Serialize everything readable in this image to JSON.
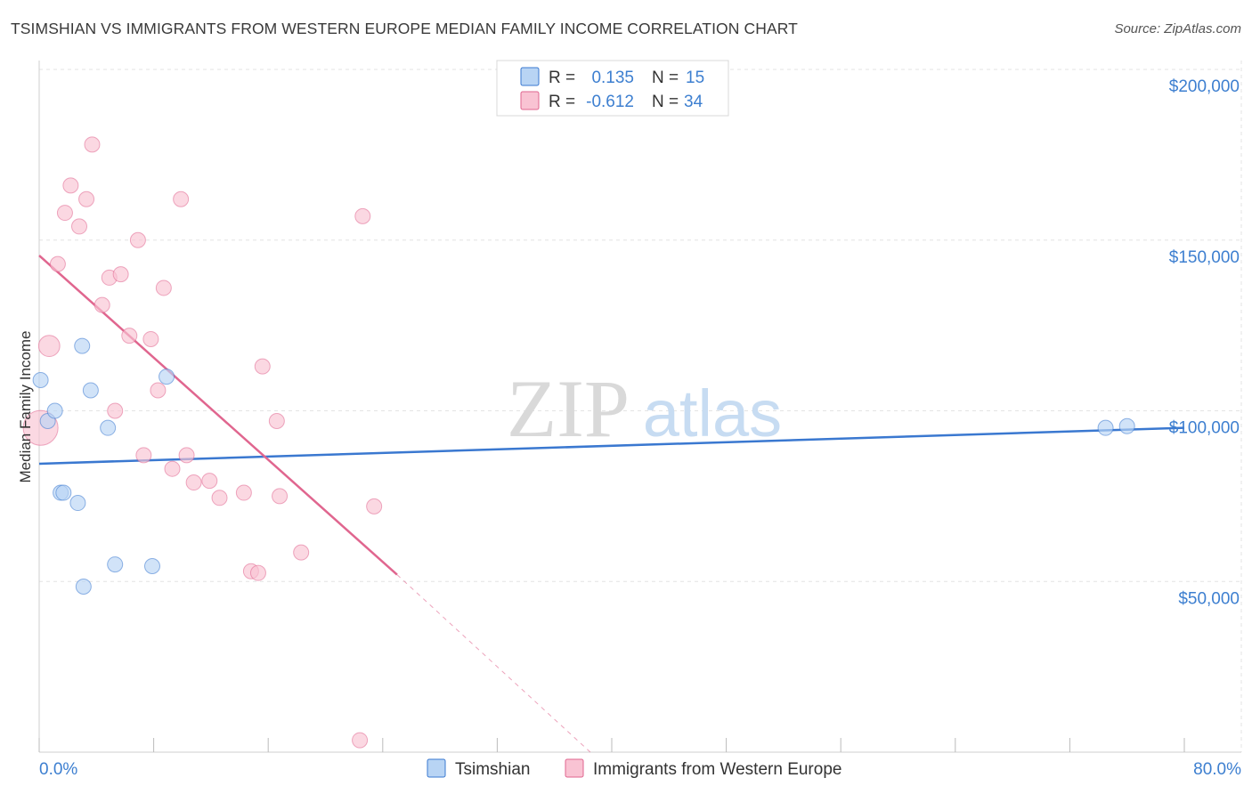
{
  "header": {
    "title": "TSIMSHIAN VS IMMIGRANTS FROM WESTERN EUROPE MEDIAN FAMILY INCOME CORRELATION CHART",
    "source": "Source: ZipAtlas.com"
  },
  "colors": {
    "blue": "#3a78d0",
    "blue_fill": "#b8d4f4",
    "pink": "#e0668f",
    "pink_fill": "#f9c3d3",
    "accent_text": "#3d7fd0"
  },
  "chart_data": {
    "type": "scatter",
    "title": "TSIMSHIAN VS IMMIGRANTS FROM WESTERN EUROPE MEDIAN FAMILY INCOME CORRELATION CHART",
    "xlabel": "",
    "ylabel": "Median Family Income",
    "xlim": [
      0,
      80
    ],
    "ylim": [
      0,
      200000
    ],
    "x_tick_labels": {
      "min": "0.0%",
      "max": "80.0%"
    },
    "y_ticks": [
      {
        "value": 50000,
        "label": "$50,000"
      },
      {
        "value": 100000,
        "label": "$100,000"
      },
      {
        "value": 150000,
        "label": "$150,000"
      },
      {
        "value": 200000,
        "label": "$200,000"
      }
    ],
    "watermark": {
      "zip": "ZIP",
      "atlas": "atlas"
    },
    "legend_stats": [
      {
        "r_label": "R =",
        "r_value": "0.135",
        "n_label": "N =",
        "n_value": "15"
      },
      {
        "r_label": "R =",
        "r_value": "-0.612",
        "n_label": "N =",
        "n_value": "34"
      }
    ],
    "series": [
      {
        "name": "Tsimshian",
        "color": "#3a78d0",
        "fill": "#b8d4f4",
        "points": [
          [
            0.1,
            109000
          ],
          [
            0.6,
            97000
          ],
          [
            1.1,
            100000
          ],
          [
            1.5,
            76000
          ],
          [
            1.7,
            76000
          ],
          [
            2.7,
            73000
          ],
          [
            3.1,
            48500
          ],
          [
            3.0,
            119000
          ],
          [
            3.6,
            106000
          ],
          [
            4.8,
            95000
          ],
          [
            5.3,
            55000
          ],
          [
            7.9,
            54500
          ],
          [
            8.9,
            110000
          ],
          [
            74.5,
            95000
          ],
          [
            76.0,
            95500
          ]
        ],
        "sizes": [
          1,
          1,
          1,
          1,
          1,
          1,
          1,
          1,
          1,
          1,
          1,
          1,
          1,
          1,
          1
        ],
        "trendline": {
          "x": [
            0,
            80
          ],
          "y": [
            84500,
            95000
          ]
        }
      },
      {
        "name": "Immigrants from Western Europe",
        "color": "#e0668f",
        "fill": "#f9c3d3",
        "points": [
          [
            0.1,
            95000
          ],
          [
            0.7,
            119000
          ],
          [
            1.3,
            143000
          ],
          [
            1.8,
            158000
          ],
          [
            2.2,
            166000
          ],
          [
            2.8,
            154000
          ],
          [
            3.3,
            162000
          ],
          [
            3.7,
            178000
          ],
          [
            4.4,
            131000
          ],
          [
            4.9,
            139000
          ],
          [
            5.7,
            140000
          ],
          [
            6.3,
            122000
          ],
          [
            6.9,
            150000
          ],
          [
            7.3,
            87000
          ],
          [
            7.8,
            121000
          ],
          [
            8.3,
            106000
          ],
          [
            8.7,
            136000
          ],
          [
            9.3,
            83000
          ],
          [
            9.9,
            162000
          ],
          [
            10.3,
            87000
          ],
          [
            10.8,
            79000
          ],
          [
            11.9,
            79500
          ],
          [
            12.6,
            74500
          ],
          [
            14.3,
            76000
          ],
          [
            14.8,
            53000
          ],
          [
            15.3,
            52500
          ],
          [
            15.6,
            113000
          ],
          [
            16.6,
            97000
          ],
          [
            16.8,
            75000
          ],
          [
            18.3,
            58500
          ],
          [
            22.6,
            157000
          ],
          [
            23.4,
            72000
          ],
          [
            5.3,
            100000
          ],
          [
            22.4,
            3500
          ]
        ],
        "sizes": [
          2.3,
          1.4,
          1,
          1,
          1,
          1,
          1,
          1,
          1,
          1,
          1,
          1,
          1,
          1,
          1,
          1,
          1,
          1,
          1,
          1,
          1,
          1,
          1,
          1,
          1,
          1,
          1,
          1,
          1,
          1,
          1,
          1,
          1,
          1
        ],
        "trendline": {
          "x": [
            0,
            25.0
          ],
          "y": [
            145500,
            52000
          ],
          "dashed_to": {
            "x": 38.5,
            "y": 0
          }
        }
      }
    ],
    "legend": "bottom-center"
  }
}
